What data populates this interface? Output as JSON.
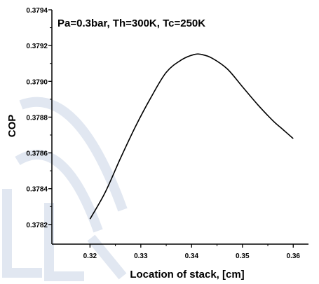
{
  "chart_data": {
    "type": "line",
    "title": "",
    "annotation": "Pa=0.3bar, Th=300K, Tc=250K",
    "xlabel": "Location of stack, [cm]",
    "ylabel": "COP",
    "xlim": [
      0.3125,
      0.363
    ],
    "ylim": [
      0.37809,
      0.3794
    ],
    "x_ticks": [
      0.32,
      0.33,
      0.34,
      0.35,
      0.36
    ],
    "x_tick_labels": [
      "0.32",
      "0.33",
      "0.34",
      "0.35",
      "0.36"
    ],
    "y_ticks": [
      0.3782,
      0.3784,
      0.3786,
      0.3788,
      0.379,
      0.3792,
      0.3794
    ],
    "y_tick_labels": [
      "0.3782",
      "0.3784",
      "0.3786",
      "0.3788",
      "0.3790",
      "0.3792",
      "0.3794"
    ],
    "grid": false,
    "legend": "none",
    "series": [
      {
        "color": "#000000",
        "x": [
          0.32,
          0.323,
          0.326,
          0.329,
          0.332,
          0.335,
          0.338,
          0.3405,
          0.342,
          0.344,
          0.347,
          0.35,
          0.353,
          0.356,
          0.358,
          0.36
        ],
        "y": [
          0.37823,
          0.37838,
          0.37857,
          0.37875,
          0.37891,
          0.37905,
          0.37912,
          0.37915,
          0.37915,
          0.37913,
          0.37907,
          0.37897,
          0.37887,
          0.37878,
          0.37873,
          0.37868
        ]
      }
    ]
  }
}
